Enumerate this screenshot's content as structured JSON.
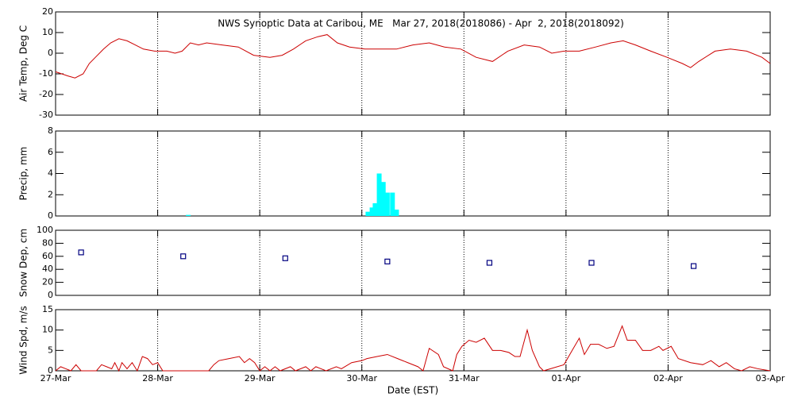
{
  "chart_data": [
    {
      "type": "line",
      "title": "NWS Synoptic Data at Caribou, ME   Mar 27, 2018(2018086) - Apr  2, 2018(2018092)",
      "ylabel": "Air Temp, Deg C",
      "color": "#cc0000",
      "x": [
        0,
        0.12,
        0.19,
        0.27,
        0.33,
        0.39,
        0.47,
        0.54,
        0.62,
        0.7,
        0.78,
        0.86,
        0.97,
        1.09,
        1.17,
        1.24,
        1.32,
        1.4,
        1.48,
        1.63,
        1.79,
        1.94,
        2.1,
        2.22,
        2.33,
        2.45,
        2.57,
        2.66,
        2.76,
        2.88,
        3.03,
        3.19,
        3.34,
        3.5,
        3.66,
        3.81,
        3.97,
        4.12,
        4.28,
        4.43,
        4.59,
        4.74,
        4.86,
        4.98,
        5.13,
        5.29,
        5.44,
        5.56,
        5.68,
        5.83,
        5.99,
        6.14,
        6.22,
        6.3,
        6.46,
        6.61,
        6.77,
        6.92,
        7.0
      ],
      "values": [
        -9,
        -11,
        -12,
        -10,
        -5,
        -2,
        2,
        5,
        7,
        6,
        4,
        2,
        1,
        1,
        0,
        1,
        5,
        4,
        5,
        4,
        3,
        -1,
        -2,
        -1,
        2,
        6,
        8,
        9,
        5,
        3,
        2,
        2,
        2,
        4,
        5,
        3,
        2,
        -2,
        -4,
        1,
        4,
        3,
        0,
        1,
        1,
        3,
        5,
        6,
        4,
        1,
        -2,
        -5,
        -7,
        -4,
        1,
        2,
        1,
        -2,
        -5
      ],
      "xlim": [
        0,
        7
      ],
      "xticks": [
        0,
        1,
        2,
        3,
        4,
        5,
        6,
        7
      ],
      "ylim": [
        -30,
        20
      ],
      "yticks": [
        -30,
        -20,
        -10,
        0,
        10,
        20
      ],
      "grid": true
    },
    {
      "type": "bar",
      "ylabel": "Precip, mm",
      "color": "#00ffff",
      "x": [
        1.3,
        3.06,
        3.1,
        3.13,
        3.17,
        3.21,
        3.25,
        3.3,
        3.34
      ],
      "values": [
        0.1,
        0.4,
        0.8,
        1.2,
        4,
        3.2,
        2.2,
        2.2,
        0.6
      ],
      "xlim": [
        0,
        7
      ],
      "xticks": [
        0,
        1,
        2,
        3,
        4,
        5,
        6,
        7
      ],
      "ylim": [
        0,
        8
      ],
      "yticks": [
        0,
        2,
        4,
        6,
        8
      ],
      "grid": true
    },
    {
      "type": "scatter",
      "ylabel": "Snow Dep, cm",
      "color": "#000080",
      "x": [
        0.25,
        1.25,
        2.25,
        3.25,
        4.25,
        5.25,
        6.25
      ],
      "values": [
        66,
        60,
        57,
        52,
        50,
        50,
        45
      ],
      "xlim": [
        0,
        7
      ],
      "xticks": [
        0,
        1,
        2,
        3,
        4,
        5,
        6,
        7
      ],
      "ylim": [
        0,
        100
      ],
      "yticks": [
        0,
        20,
        40,
        60,
        80,
        100
      ],
      "grid": true
    },
    {
      "type": "line",
      "ylabel": "Wind Spd, m/s",
      "xlabel": "Date (EST)",
      "color": "#cc0000",
      "x": [
        0,
        0.05,
        0.1,
        0.15,
        0.2,
        0.25,
        0.4,
        0.45,
        0.5,
        0.55,
        0.58,
        0.62,
        0.65,
        0.7,
        0.75,
        0.8,
        0.85,
        0.9,
        0.95,
        1.0,
        1.05,
        1.5,
        1.55,
        1.6,
        1.7,
        1.8,
        1.85,
        1.9,
        1.95,
        2.0,
        2.05,
        2.1,
        2.15,
        2.2,
        2.3,
        2.35,
        2.45,
        2.5,
        2.55,
        2.6,
        2.65,
        2.75,
        2.8,
        2.9,
        3.0,
        3.05,
        3.15,
        3.25,
        3.35,
        3.45,
        3.55,
        3.6,
        3.66,
        3.75,
        3.8,
        3.89,
        3.93,
        3.98,
        4.05,
        4.12,
        4.2,
        4.28,
        4.36,
        4.44,
        4.5,
        4.55,
        4.62,
        4.67,
        4.74,
        4.78,
        4.98,
        5.06,
        5.13,
        5.18,
        5.24,
        5.32,
        5.4,
        5.47,
        5.55,
        5.6,
        5.68,
        5.75,
        5.83,
        5.91,
        5.95,
        6.03,
        6.1,
        6.22,
        6.34,
        6.42,
        6.5,
        6.57,
        6.65,
        6.72,
        6.8,
        6.88,
        7.0
      ],
      "values": [
        0,
        1,
        0.5,
        0,
        1.5,
        0,
        0,
        1.5,
        1,
        0.5,
        2,
        0,
        2,
        0.5,
        2,
        0,
        3.5,
        3,
        1.5,
        2,
        0,
        0,
        1.5,
        2.5,
        3,
        3.5,
        2,
        3,
        2,
        0,
        1,
        0,
        1,
        0,
        1,
        0,
        1,
        0,
        1,
        0.5,
        0,
        1,
        0.5,
        2,
        2.5,
        3,
        3.5,
        4,
        3,
        2,
        1,
        0,
        5.5,
        4,
        1,
        0,
        4,
        6,
        7.5,
        7,
        8,
        5,
        5,
        4.5,
        3.5,
        3.5,
        10,
        5,
        1,
        0,
        1.5,
        5,
        8,
        4,
        6.5,
        6.5,
        5.5,
        6,
        11,
        7.5,
        7.5,
        5,
        5,
        6,
        5,
        6,
        3,
        2,
        1.5,
        2.5,
        1,
        2,
        0.5,
        0,
        1,
        0.5,
        0
      ],
      "xlim": [
        0,
        7
      ],
      "xticks": [
        {
          "value": 0,
          "label": "27-Mar"
        },
        {
          "value": 1,
          "label": "28-Mar"
        },
        {
          "value": 2,
          "label": "29-Mar"
        },
        {
          "value": 3,
          "label": "30-Mar"
        },
        {
          "value": 4,
          "label": "31-Mar"
        },
        {
          "value": 5,
          "label": "01-Apr"
        },
        {
          "value": 6,
          "label": "02-Apr"
        },
        {
          "value": 7,
          "label": "03-Apr"
        }
      ],
      "ylim": [
        0,
        15
      ],
      "yticks": [
        0,
        5,
        10,
        15
      ],
      "grid": true
    }
  ]
}
